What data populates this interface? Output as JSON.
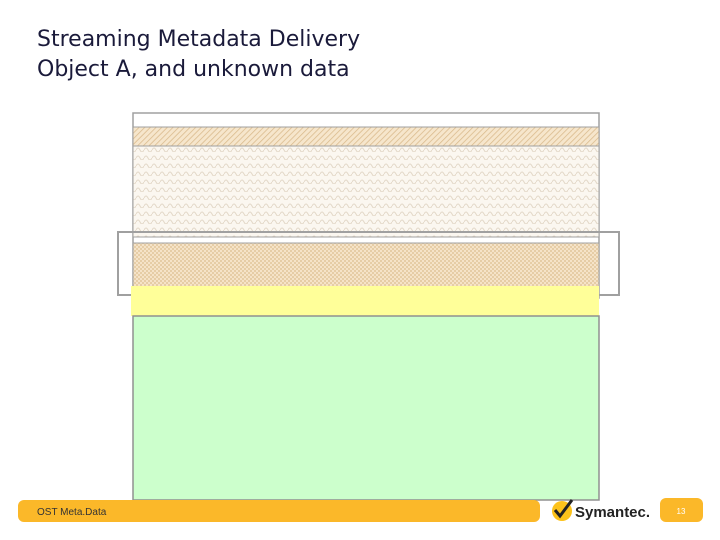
{
  "header": {
    "title_lines": [
      "Streaming Metadata Delivery",
      "Object A, and unknown data"
    ]
  },
  "footer": {
    "label": "OST Meta.Data",
    "brand": "Symantec.",
    "page_number": "13"
  }
}
